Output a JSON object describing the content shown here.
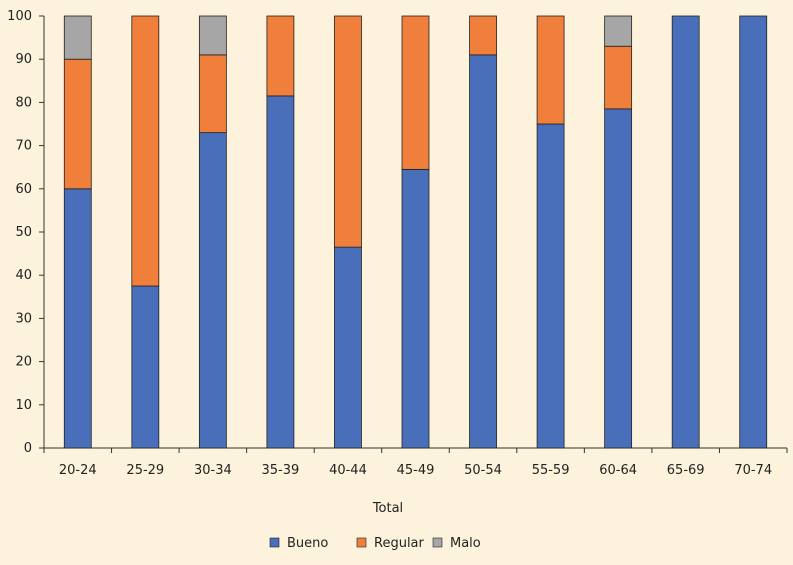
{
  "chart_data": {
    "type": "bar",
    "stacked": true,
    "categories": [
      "20-24",
      "25-29",
      "30-34",
      "35-39",
      "40-44",
      "45-49",
      "50-54",
      "55-59",
      "60-64",
      "65-69",
      "70-74"
    ],
    "series": [
      {
        "name": "Bueno",
        "color": "#4a6fba",
        "values": [
          60,
          37.5,
          73,
          81.5,
          46.5,
          64.5,
          91,
          75,
          78.5,
          100,
          100
        ]
      },
      {
        "name": "Regular",
        "color": "#ef7f3a",
        "values": [
          30,
          62.5,
          18,
          18.5,
          53.5,
          35.5,
          9,
          25,
          14.5,
          0,
          0
        ]
      },
      {
        "name": "Malo",
        "color": "#a6a6a6",
        "values": [
          10,
          0,
          9,
          0,
          0,
          0,
          0,
          0,
          7,
          0,
          0
        ]
      }
    ],
    "title": "",
    "xlabel": "Total",
    "ylabel": "",
    "ylim": [
      0,
      100
    ],
    "yticks": [
      0,
      10,
      20,
      30,
      40,
      50,
      60,
      70,
      80,
      90,
      100
    ],
    "legend_position": "bottom"
  }
}
